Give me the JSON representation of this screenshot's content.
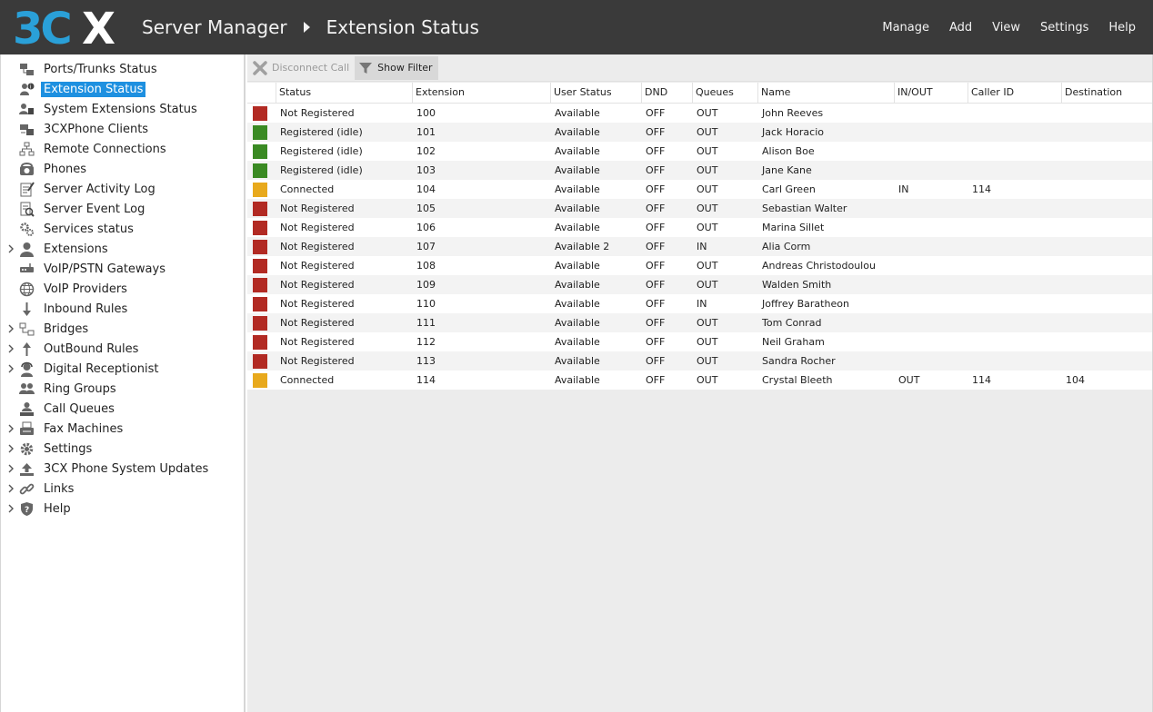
{
  "app": {
    "logo_text": "3CX",
    "breadcrumb": [
      "Server Manager",
      "Extension Status"
    ]
  },
  "topnav": [
    "Manage",
    "Add",
    "View",
    "Settings",
    "Help"
  ],
  "sidebar": {
    "items": [
      {
        "label": "Ports/Trunks Status",
        "icon": "ports-trunks-icon",
        "expandable": false,
        "active": false
      },
      {
        "label": "Extension Status",
        "icon": "extension-status-icon",
        "expandable": false,
        "active": true
      },
      {
        "label": "System Extensions Status",
        "icon": "system-extensions-icon",
        "expandable": false,
        "active": false
      },
      {
        "label": "3CXPhone Clients",
        "icon": "phone-clients-icon",
        "expandable": false,
        "active": false
      },
      {
        "label": "Remote Connections",
        "icon": "network-icon",
        "expandable": false,
        "active": false
      },
      {
        "label": "Phones",
        "icon": "phone-icon",
        "expandable": false,
        "active": false
      },
      {
        "label": "Server Activity Log",
        "icon": "activity-log-icon",
        "expandable": false,
        "active": false
      },
      {
        "label": "Server Event Log",
        "icon": "event-log-icon",
        "expandable": false,
        "active": false
      },
      {
        "label": "Services status",
        "icon": "gears-icon",
        "expandable": false,
        "active": false
      },
      {
        "label": "Extensions",
        "icon": "user-icon",
        "expandable": true,
        "active": false
      },
      {
        "label": "VoIP/PSTN Gateways",
        "icon": "gateway-icon",
        "expandable": false,
        "active": false
      },
      {
        "label": "VoIP Providers",
        "icon": "globe-icon",
        "expandable": false,
        "active": false
      },
      {
        "label": "Inbound Rules",
        "icon": "arrow-down-icon",
        "expandable": false,
        "active": false
      },
      {
        "label": "Bridges",
        "icon": "bridge-icon",
        "expandable": true,
        "active": false
      },
      {
        "label": "OutBound Rules",
        "icon": "arrow-up-icon",
        "expandable": true,
        "active": false
      },
      {
        "label": "Digital Receptionist",
        "icon": "receptionist-icon",
        "expandable": true,
        "active": false
      },
      {
        "label": "Ring Groups",
        "icon": "group-icon",
        "expandable": false,
        "active": false
      },
      {
        "label": "Call Queues",
        "icon": "queue-icon",
        "expandable": false,
        "active": false
      },
      {
        "label": "Fax Machines",
        "icon": "fax-icon",
        "expandable": true,
        "active": false
      },
      {
        "label": "Settings",
        "icon": "gear-icon",
        "expandable": true,
        "active": false
      },
      {
        "label": "3CX Phone System Updates",
        "icon": "upload-icon",
        "expandable": true,
        "active": false
      },
      {
        "label": "Links",
        "icon": "link-icon",
        "expandable": true,
        "active": false
      },
      {
        "label": "Help",
        "icon": "help-shield-icon",
        "expandable": true,
        "active": false
      }
    ]
  },
  "toolbar": {
    "disconnect_label": "Disconnect Call",
    "filter_label": "Show Filter"
  },
  "table": {
    "columns": [
      "Status",
      "Extension",
      "User Status",
      "DND",
      "Queues",
      "Name",
      "IN/OUT",
      "Caller ID",
      "Destination"
    ],
    "status_colors": {
      "red": "#b22a23",
      "green": "#3a8a23",
      "yellow": "#e8a91c"
    },
    "rows": [
      {
        "color": "red",
        "status": "Not Registered",
        "extension": "100",
        "user_status": "Available",
        "dnd": "OFF",
        "queues": "OUT",
        "name": "John Reeves",
        "inout": "",
        "caller_id": "",
        "destination": ""
      },
      {
        "color": "green",
        "status": "Registered (idle)",
        "extension": "101",
        "user_status": "Available",
        "dnd": "OFF",
        "queues": "OUT",
        "name": "Jack Horacio",
        "inout": "",
        "caller_id": "",
        "destination": ""
      },
      {
        "color": "green",
        "status": "Registered (idle)",
        "extension": "102",
        "user_status": "Available",
        "dnd": "OFF",
        "queues": "OUT",
        "name": "Alison Boe",
        "inout": "",
        "caller_id": "",
        "destination": ""
      },
      {
        "color": "green",
        "status": "Registered (idle)",
        "extension": "103",
        "user_status": "Available",
        "dnd": "OFF",
        "queues": "OUT",
        "name": "Jane Kane",
        "inout": "",
        "caller_id": "",
        "destination": ""
      },
      {
        "color": "yellow",
        "status": "Connected",
        "extension": "104",
        "user_status": "Available",
        "dnd": "OFF",
        "queues": "OUT",
        "name": "Carl Green",
        "inout": "IN",
        "caller_id": "114",
        "destination": ""
      },
      {
        "color": "red",
        "status": "Not Registered",
        "extension": "105",
        "user_status": "Available",
        "dnd": "OFF",
        "queues": "OUT",
        "name": "Sebastian Walter",
        "inout": "",
        "caller_id": "",
        "destination": ""
      },
      {
        "color": "red",
        "status": "Not Registered",
        "extension": "106",
        "user_status": "Available",
        "dnd": "OFF",
        "queues": "OUT",
        "name": "Marina Sillet",
        "inout": "",
        "caller_id": "",
        "destination": ""
      },
      {
        "color": "red",
        "status": "Not Registered",
        "extension": "107",
        "user_status": "Available 2",
        "dnd": "OFF",
        "queues": "IN",
        "name": "Alia Corm",
        "inout": "",
        "caller_id": "",
        "destination": ""
      },
      {
        "color": "red",
        "status": "Not Registered",
        "extension": "108",
        "user_status": "Available",
        "dnd": "OFF",
        "queues": "OUT",
        "name": "Andreas Christodoulou",
        "inout": "",
        "caller_id": "",
        "destination": ""
      },
      {
        "color": "red",
        "status": "Not Registered",
        "extension": "109",
        "user_status": "Available",
        "dnd": "OFF",
        "queues": "OUT",
        "name": "Walden Smith",
        "inout": "",
        "caller_id": "",
        "destination": ""
      },
      {
        "color": "red",
        "status": "Not Registered",
        "extension": "110",
        "user_status": "Available",
        "dnd": "OFF",
        "queues": "IN",
        "name": "Joffrey Baratheon",
        "inout": "",
        "caller_id": "",
        "destination": ""
      },
      {
        "color": "red",
        "status": "Not Registered",
        "extension": "111",
        "user_status": "Available",
        "dnd": "OFF",
        "queues": "OUT",
        "name": "Tom Conrad",
        "inout": "",
        "caller_id": "",
        "destination": ""
      },
      {
        "color": "red",
        "status": "Not Registered",
        "extension": "112",
        "user_status": "Available",
        "dnd": "OFF",
        "queues": "OUT",
        "name": "Neil Graham",
        "inout": "",
        "caller_id": "",
        "destination": ""
      },
      {
        "color": "red",
        "status": "Not Registered",
        "extension": "113",
        "user_status": "Available",
        "dnd": "OFF",
        "queues": "OUT",
        "name": "Sandra Rocher",
        "inout": "",
        "caller_id": "",
        "destination": ""
      },
      {
        "color": "yellow",
        "status": "Connected",
        "extension": "114",
        "user_status": "Available",
        "dnd": "OFF",
        "queues": "OUT",
        "name": "Crystal Bleeth",
        "inout": "OUT",
        "caller_id": "114",
        "destination": "104"
      }
    ]
  }
}
